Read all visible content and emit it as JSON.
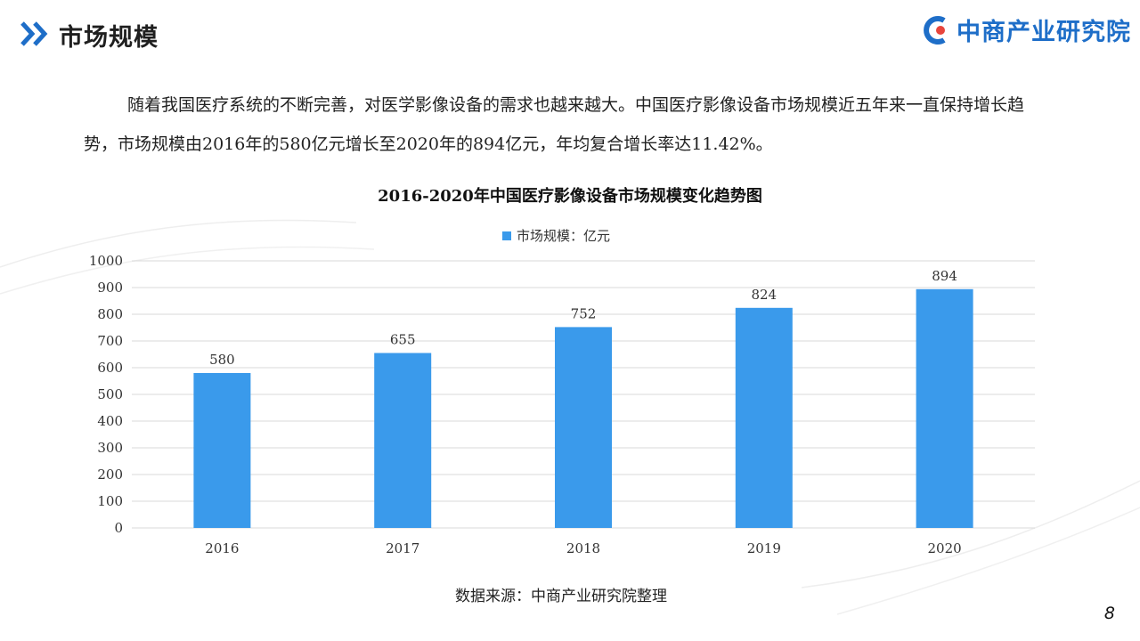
{
  "header": {
    "title": "市场规模",
    "logo_text": "中商产业研究院"
  },
  "intro": "随着我国医疗系统的不断完善，对医学影像设备的需求也越来越大。中国医疗影像设备市场规模近五年来一直保持增长趋势，市场规模由2016年的580亿元增长至2020年的894亿元，年均复合增长率达11.42%。",
  "colors": {
    "accent": "#1e6ec8",
    "bar": "#3a9aeb",
    "grid": "#d9d9d9"
  },
  "chart_data": {
    "type": "bar",
    "title": "2016-2020年中国医疗影像设备市场规模变化趋势图",
    "categories": [
      "2016",
      "2017",
      "2018",
      "2019",
      "2020"
    ],
    "series": [
      {
        "name": "市场规模：亿元",
        "values": [
          580,
          655,
          752,
          824,
          894
        ]
      }
    ],
    "ylim": [
      0,
      1000
    ],
    "yticks": [
      0,
      100,
      200,
      300,
      400,
      500,
      600,
      700,
      800,
      900,
      1000
    ],
    "grid": true,
    "legend": "top-center",
    "data_labels": true
  },
  "source": "数据来源：中商产业研究院整理",
  "page_number": "8"
}
